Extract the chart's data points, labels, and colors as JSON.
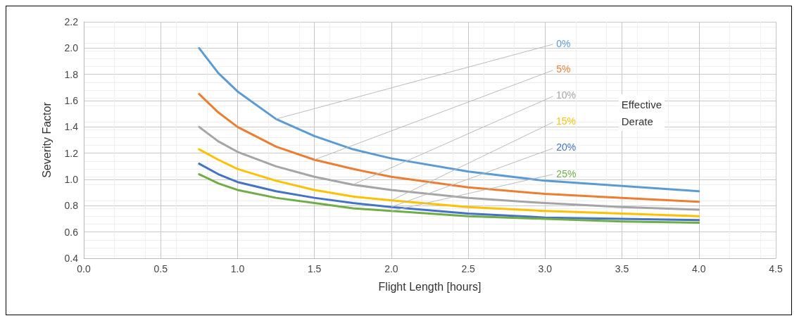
{
  "chart_data": {
    "type": "line",
    "xlabel": "Flight Length [hours]",
    "ylabel": "Severity Factor",
    "x": [
      0.75,
      0.875,
      1,
      1.25,
      1.5,
      1.75,
      2,
      2.5,
      3,
      3.5,
      4
    ],
    "series": [
      {
        "name": "0%",
        "color": "#5b9bd5",
        "values": [
          2.0,
          1.81,
          1.67,
          1.46,
          1.33,
          1.23,
          1.16,
          1.06,
          0.99,
          0.95,
          0.91
        ]
      },
      {
        "name": "5%",
        "color": "#ed7d31",
        "values": [
          1.65,
          1.51,
          1.4,
          1.25,
          1.15,
          1.08,
          1.02,
          0.94,
          0.89,
          0.86,
          0.83
        ]
      },
      {
        "name": "10%",
        "color": "#a5a5a5",
        "values": [
          1.4,
          1.29,
          1.21,
          1.1,
          1.02,
          0.96,
          0.92,
          0.86,
          0.82,
          0.79,
          0.77
        ]
      },
      {
        "name": "15%",
        "color": "#ffc000",
        "values": [
          1.23,
          1.15,
          1.08,
          0.99,
          0.92,
          0.87,
          0.84,
          0.79,
          0.76,
          0.74,
          0.72
        ]
      },
      {
        "name": "20%",
        "color": "#4472c4",
        "values": [
          1.12,
          1.04,
          0.98,
          0.91,
          0.86,
          0.82,
          0.79,
          0.74,
          0.71,
          0.7,
          0.69
        ]
      },
      {
        "name": "25%",
        "color": "#70ad47",
        "values": [
          1.04,
          0.97,
          0.92,
          0.86,
          0.82,
          0.78,
          0.76,
          0.72,
          0.7,
          0.68,
          0.67
        ]
      }
    ],
    "annotations": [
      "Effective Derate"
    ],
    "xlim": [
      0,
      4.5
    ],
    "xticks": [
      {
        "value": 0,
        "label": "0.0"
      },
      {
        "value": 0.5,
        "label": "0.5"
      },
      {
        "value": 1,
        "label": "1.0"
      },
      {
        "value": 1.5,
        "label": "1.5"
      },
      {
        "value": 2,
        "label": "2.0"
      },
      {
        "value": 2.5,
        "label": "2.5"
      },
      {
        "value": 3,
        "label": "3.0"
      },
      {
        "value": 3.5,
        "label": "3.5"
      },
      {
        "value": 4,
        "label": "4.0"
      },
      {
        "value": 4.5,
        "label": "4.5"
      }
    ],
    "ylim": [
      0.4,
      2.2
    ],
    "yticks": [
      {
        "value": 0.4,
        "label": "0.4"
      },
      {
        "value": 0.6,
        "label": "0.6"
      },
      {
        "value": 0.8,
        "label": "0.8"
      },
      {
        "value": 1,
        "label": "1.0"
      },
      {
        "value": 1.2,
        "label": "1.2"
      },
      {
        "value": 1.4,
        "label": "1.4"
      },
      {
        "value": 1.6,
        "label": "1.6"
      },
      {
        "value": 1.8,
        "label": "1.8"
      },
      {
        "value": 2,
        "label": "2.0"
      },
      {
        "value": 2.2,
        "label": "2.2"
      }
    ],
    "grid": true,
    "legend": false,
    "marker": "none",
    "line_style": "solid"
  }
}
